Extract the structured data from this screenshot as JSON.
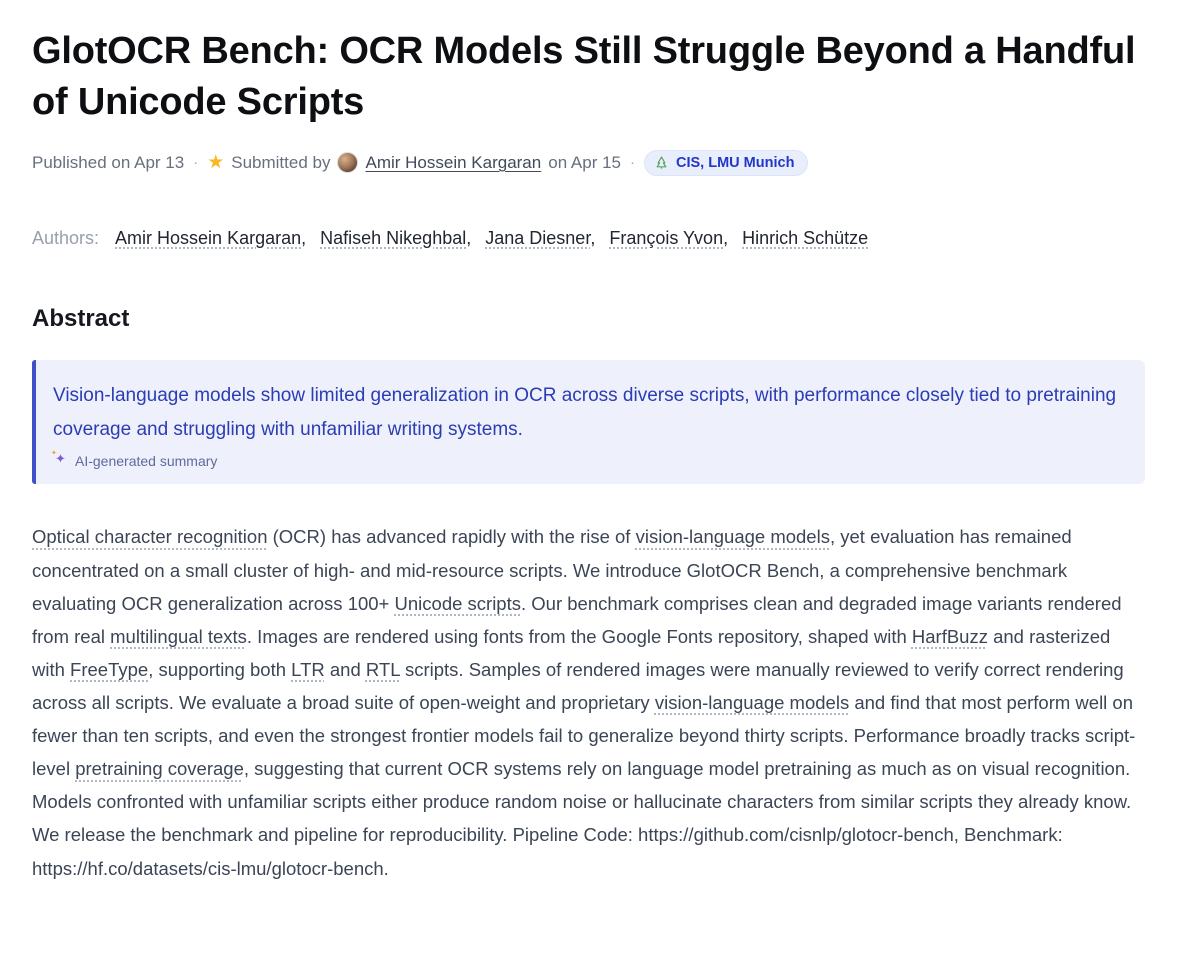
{
  "page": {
    "title": "GlotOCR Bench: OCR Models Still Struggle Beyond a Handful of Unicode Scripts"
  },
  "meta": {
    "published_label": "Published on",
    "published_date": "Apr 13",
    "separator": "·",
    "submitted_by_label": "Submitted by",
    "submitter": "Amir Hossein Kargaran",
    "submitted_date": "on Apr 15",
    "org_badge_label": "CIS, LMU Munich"
  },
  "authors": {
    "label": "Authors:",
    "names": [
      "Amir Hossein Kargaran",
      "Nafiseh Nikeghbal",
      "Jana Diesner",
      "François Yvon",
      "Hinrich Schütze"
    ]
  },
  "abstract": {
    "heading": "Abstract",
    "summary": "Vision-language models show limited generalization in OCR across diverse scripts, with performance closely tied to pretraining coverage and struggling with unfamiliar writing systems.",
    "ai_label": "AI-generated summary",
    "body_segments": [
      {
        "text": "Optical character recognition",
        "underline": true
      },
      {
        "text": " (OCR) has advanced rapidly with the rise of ",
        "underline": false
      },
      {
        "text": "vision-language models",
        "underline": true
      },
      {
        "text": ", yet evaluation has remained concentrated on a small cluster of high- and mid-resource scripts. We introduce GlotOCR Bench, a comprehensive benchmark evaluating OCR generalization across 100+ ",
        "underline": false
      },
      {
        "text": "Unicode scripts",
        "underline": true
      },
      {
        "text": ". Our benchmark comprises clean and degraded image variants rendered from real ",
        "underline": false
      },
      {
        "text": "multilingual texts",
        "underline": true
      },
      {
        "text": ". Images are rendered using fonts from the Google Fonts repository, shaped with ",
        "underline": false
      },
      {
        "text": "HarfBuzz",
        "underline": true
      },
      {
        "text": " and rasterized with ",
        "underline": false
      },
      {
        "text": "FreeType",
        "underline": true
      },
      {
        "text": ", supporting both ",
        "underline": false
      },
      {
        "text": "LTR",
        "underline": true
      },
      {
        "text": " and ",
        "underline": false
      },
      {
        "text": "RTL",
        "underline": true
      },
      {
        "text": " scripts. Samples of rendered images were manually reviewed to verify correct rendering across all scripts. We evaluate a broad suite of open-weight and proprietary ",
        "underline": false
      },
      {
        "text": "vision-language models",
        "underline": true
      },
      {
        "text": " and find that most perform well on fewer than ten scripts, and even the strongest frontier models fail to generalize beyond thirty scripts. Performance broadly tracks script-level ",
        "underline": false
      },
      {
        "text": "pretraining coverage",
        "underline": true
      },
      {
        "text": ", suggesting that current OCR systems rely on language model pretraining as much as on visual recognition. Models confronted with unfamiliar scripts either produce random noise or hallucinate characters from similar scripts they already know. We release the benchmark and pipeline for reproducibility. Pipeline Code: https://github.com/cisnlp/glotocr-bench, Benchmark: https://hf.co/datasets/cis-lmu/glotocr-bench.",
        "underline": false
      }
    ]
  },
  "icons": {
    "star": "★",
    "sparkle": "✦",
    "org_icon_name": "tree-icon"
  },
  "colors": {
    "title_text": "#0d0f13",
    "meta_text": "#68707e",
    "star": "#f7b926",
    "badge_bg": "#e9eefc",
    "badge_text": "#2136c9",
    "label_text": "#99a0ab",
    "author_text": "#21262f",
    "summary_bg": "#eef1fb",
    "summary_border": "#4050c8",
    "accent_text": "#2b3cb5",
    "ai_label_text": "#5f6a9d",
    "sparkle_purple": "#7c5cd6",
    "sparkle_orange": "#f59b2c",
    "body_text": "#3c4555",
    "underline_dot": "#b0b7c2"
  }
}
